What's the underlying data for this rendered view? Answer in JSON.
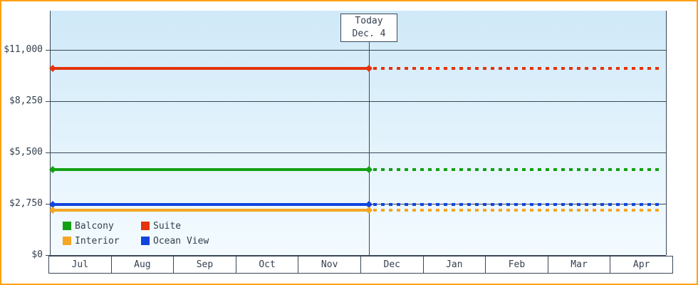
{
  "chart_data": {
    "type": "line",
    "title": "",
    "x_categories": [
      "Jul",
      "Aug",
      "Sep",
      "Oct",
      "Nov",
      "Dec",
      "Jan",
      "Feb",
      "Mar",
      "Apr"
    ],
    "y_ticks": [
      {
        "label": "$11,000",
        "value": 11000
      },
      {
        "label": "$8,250",
        "value": 8250
      },
      {
        "label": "$5,500",
        "value": 5500
      },
      {
        "label": "$2,750",
        "value": 2750
      },
      {
        "label": "$0",
        "value": 0
      }
    ],
    "y_max": 11000,
    "today": {
      "line1": "Today",
      "line2": "Dec. 4",
      "month_index": 5,
      "day": 4
    },
    "series": [
      {
        "name": "Suite",
        "color": "#e5330d",
        "value": 10000
      },
      {
        "name": "Balcony",
        "color": "#12a012",
        "value": 4600
      },
      {
        "name": "Ocean View",
        "color": "#1144dd",
        "value": 2700
      },
      {
        "name": "Interior",
        "color": "#f5a623",
        "value": 2400
      }
    ],
    "legend": [
      {
        "name": "Balcony",
        "color": "#12a012"
      },
      {
        "name": "Suite",
        "color": "#e5330d"
      },
      {
        "name": "Interior",
        "color": "#f5a623"
      },
      {
        "name": "Ocean View",
        "color": "#1144dd"
      }
    ],
    "line_style": {
      "solid_before_today": true,
      "dashed_after_today": true
    },
    "axis_color": "#3a4757",
    "text_color": "#333f4e",
    "plot_bg_top": "#cfe9f8",
    "plot_bg_bottom": "#f4fbff",
    "border_color": "#ffa014",
    "legend_position": "bottom-left",
    "grid": true
  }
}
